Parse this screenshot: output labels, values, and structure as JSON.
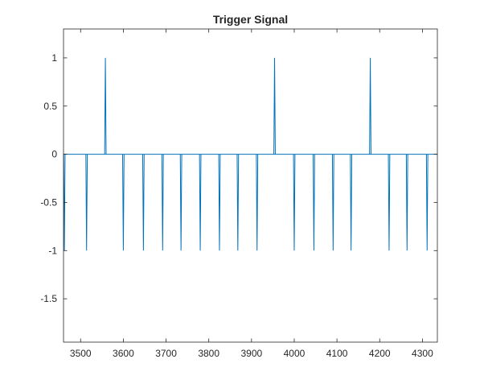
{
  "chart_data": {
    "type": "line",
    "title": "Trigger Signal",
    "xlabel": "",
    "ylabel": "",
    "xlim": [
      3460,
      4335
    ],
    "ylim": [
      -1.95,
      1.3
    ],
    "x_ticks": [
      3500,
      3600,
      3700,
      3800,
      3900,
      4000,
      4100,
      4200,
      4300
    ],
    "x_tick_labels": [
      "3500",
      "3600",
      "3700",
      "3800",
      "3900",
      "4000",
      "4100",
      "4200",
      "4300"
    ],
    "y_ticks": [
      1,
      0.5,
      0,
      -0.5,
      -1,
      -1.5
    ],
    "y_tick_labels": [
      "1",
      "0.5",
      "0",
      "-0.5",
      "-1",
      "-1.5"
    ],
    "grid": false,
    "legend": "none",
    "series": [
      {
        "color": "#0072BD",
        "baseline": 0,
        "pulses": [
          {
            "x": 3462,
            "y": -1
          },
          {
            "x": 3514,
            "y": -1
          },
          {
            "x": 3558,
            "y": 1
          },
          {
            "x": 3600,
            "y": -1
          },
          {
            "x": 3647,
            "y": -1
          },
          {
            "x": 3692,
            "y": -1
          },
          {
            "x": 3735,
            "y": -1
          },
          {
            "x": 3780,
            "y": -1
          },
          {
            "x": 3825,
            "y": -1
          },
          {
            "x": 3868,
            "y": -1
          },
          {
            "x": 3913,
            "y": -1
          },
          {
            "x": 3954,
            "y": 1
          },
          {
            "x": 4000,
            "y": -1
          },
          {
            "x": 4046,
            "y": -1
          },
          {
            "x": 4091,
            "y": -1
          },
          {
            "x": 4133,
            "y": -1
          },
          {
            "x": 4178,
            "y": 1
          },
          {
            "x": 4222,
            "y": -1
          },
          {
            "x": 4264,
            "y": -1
          },
          {
            "x": 4311,
            "y": -1
          }
        ]
      }
    ]
  }
}
